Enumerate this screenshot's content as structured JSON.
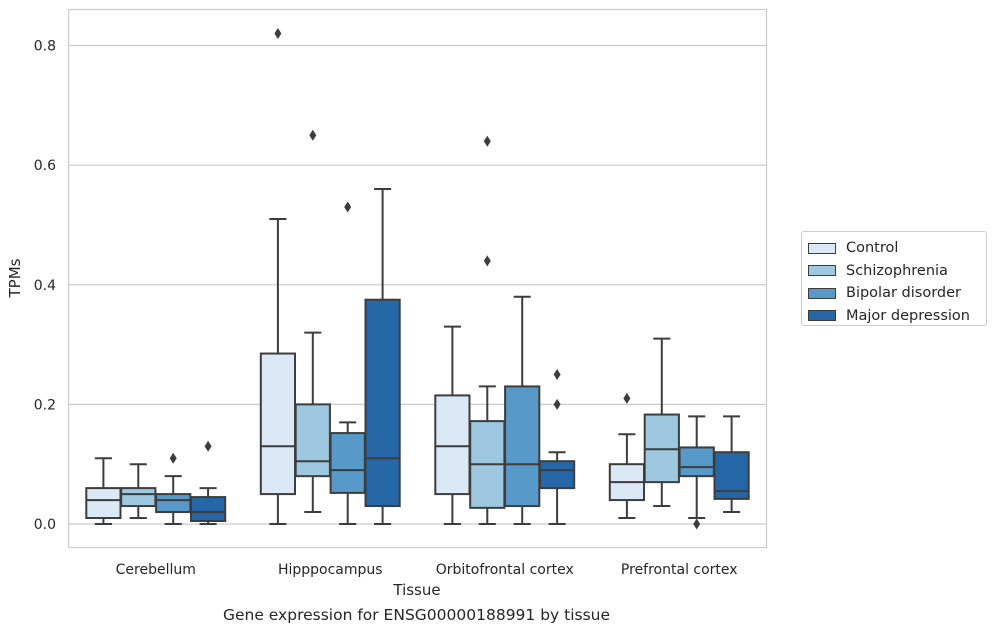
{
  "chart_data": {
    "type": "boxplot",
    "xlabel": "Tissue",
    "ylabel": "TPMs",
    "caption": "Gene expression for ENSG00000188991 by tissue",
    "categories": [
      "Cerebellum",
      "Hipppocampus",
      "Orbitofrontal cortex",
      "Prefrontal cortex"
    ],
    "ylim": [
      -0.04,
      0.862
    ],
    "yticks": [
      "0.0",
      "0.2",
      "0.4",
      "0.6",
      "0.8"
    ],
    "grid": true,
    "legend_position": "right",
    "series": [
      {
        "name": "Control",
        "color": "#dbe8f5",
        "boxes": [
          {
            "whislo": 0.0,
            "q1": 0.01,
            "med": 0.04,
            "q3": 0.06,
            "whishi": 0.11,
            "fliers": []
          },
          {
            "whislo": 0.0,
            "q1": 0.05,
            "med": 0.13,
            "q3": 0.285,
            "whishi": 0.51,
            "fliers": [
              0.82
            ]
          },
          {
            "whislo": 0.0,
            "q1": 0.05,
            "med": 0.13,
            "q3": 0.215,
            "whishi": 0.33,
            "fliers": []
          },
          {
            "whislo": 0.01,
            "q1": 0.04,
            "med": 0.07,
            "q3": 0.1,
            "whishi": 0.15,
            "fliers": [
              0.21
            ]
          }
        ]
      },
      {
        "name": "Schizophrenia",
        "color": "#9dc8e0",
        "boxes": [
          {
            "whislo": 0.01,
            "q1": 0.03,
            "med": 0.05,
            "q3": 0.06,
            "whishi": 0.1,
            "fliers": []
          },
          {
            "whislo": 0.02,
            "q1": 0.08,
            "med": 0.105,
            "q3": 0.2,
            "whishi": 0.32,
            "fliers": [
              0.65
            ]
          },
          {
            "whislo": 0.0,
            "q1": 0.027,
            "med": 0.1,
            "q3": 0.172,
            "whishi": 0.23,
            "fliers": [
              0.44,
              0.64
            ]
          },
          {
            "whislo": 0.03,
            "q1": 0.07,
            "med": 0.125,
            "q3": 0.183,
            "whishi": 0.31,
            "fliers": []
          }
        ]
      },
      {
        "name": "Bipolar disorder",
        "color": "#5799c9",
        "boxes": [
          {
            "whislo": 0.0,
            "q1": 0.02,
            "med": 0.04,
            "q3": 0.05,
            "whishi": 0.08,
            "fliers": [
              0.11
            ]
          },
          {
            "whislo": 0.0,
            "q1": 0.052,
            "med": 0.09,
            "q3": 0.152,
            "whishi": 0.17,
            "fliers": [
              0.53
            ]
          },
          {
            "whislo": 0.0,
            "q1": 0.03,
            "med": 0.1,
            "q3": 0.23,
            "whishi": 0.38,
            "fliers": []
          },
          {
            "whislo": 0.01,
            "q1": 0.08,
            "med": 0.095,
            "q3": 0.128,
            "whishi": 0.18,
            "fliers": [
              0.0
            ]
          }
        ]
      },
      {
        "name": "Major depression",
        "color": "#2566a7",
        "boxes": [
          {
            "whislo": 0.0,
            "q1": 0.005,
            "med": 0.02,
            "q3": 0.045,
            "whishi": 0.06,
            "fliers": [
              0.13
            ]
          },
          {
            "whislo": 0.0,
            "q1": 0.03,
            "med": 0.11,
            "q3": 0.375,
            "whishi": 0.56,
            "fliers": []
          },
          {
            "whislo": 0.0,
            "q1": 0.06,
            "med": 0.09,
            "q3": 0.105,
            "whishi": 0.12,
            "fliers": [
              0.2,
              0.25
            ]
          },
          {
            "whislo": 0.02,
            "q1": 0.042,
            "med": 0.055,
            "q3": 0.12,
            "whishi": 0.18,
            "fliers": []
          }
        ]
      }
    ]
  }
}
